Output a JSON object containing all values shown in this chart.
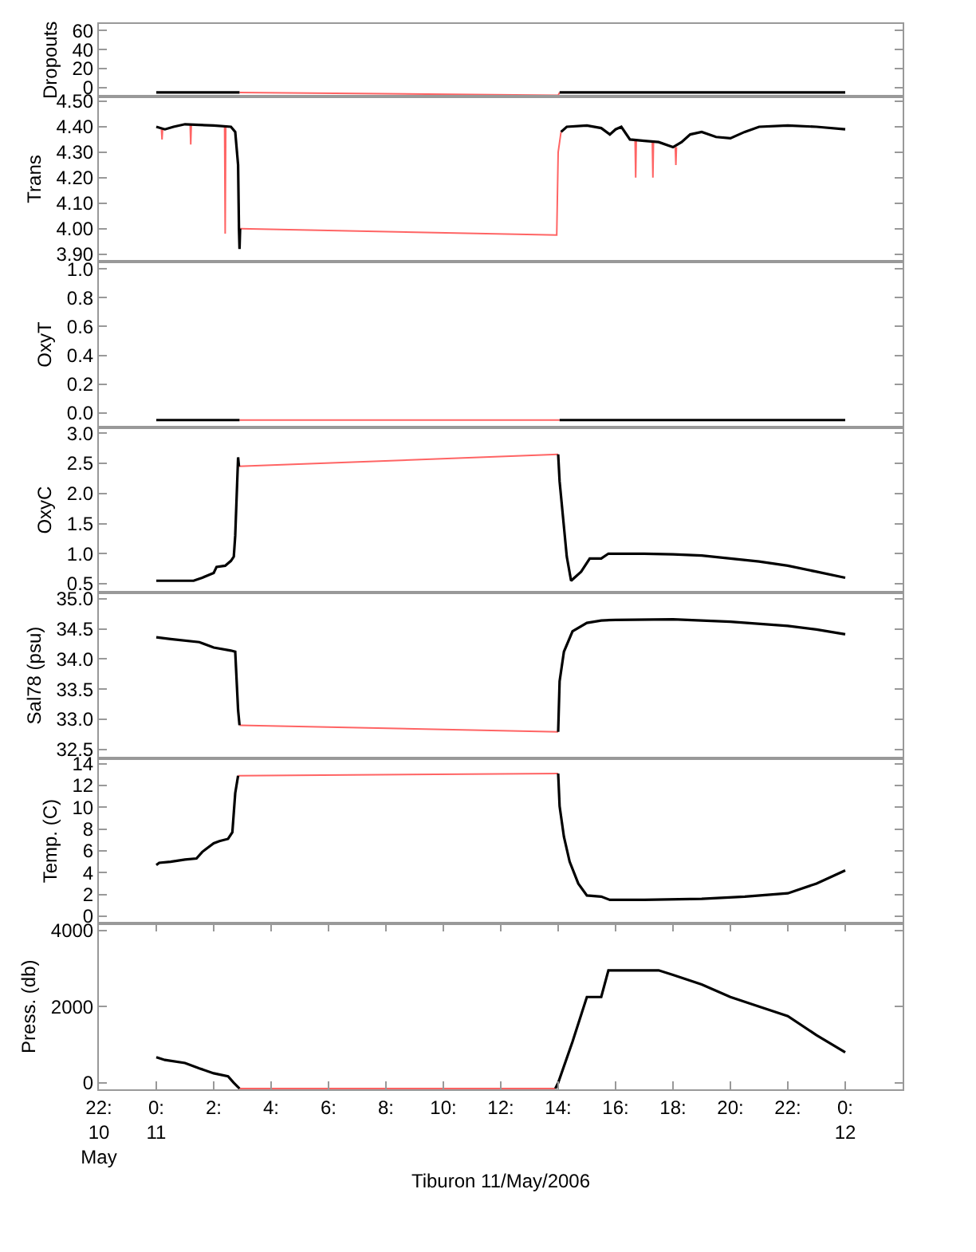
{
  "chart_data": [
    {
      "type": "line",
      "ylabel": "Dropouts",
      "xlim": [
        -2,
        26
      ],
      "ylim": [
        -9,
        67
      ],
      "yticks": [
        0,
        20,
        40,
        60
      ],
      "tick_labels": "y",
      "marker": "none",
      "series": [
        {
          "color": "#ff6464",
          "x": [
            2.9,
            14.0,
            14.05
          ],
          "values": [
            -5,
            -8,
            -5
          ]
        },
        {
          "color": "#000000",
          "x": [
            0,
            2.9,
            null,
            14.05,
            24
          ],
          "values": [
            -5,
            -5,
            null,
            -5,
            -5
          ]
        }
      ]
    },
    {
      "type": "line",
      "ylabel": "Trans",
      "xlim": [
        -2,
        26
      ],
      "ylim": [
        3.87,
        4.52
      ],
      "yticks": [
        {
          "value": 3.9,
          "label": "3.90"
        },
        {
          "value": 4.0,
          "label": "4.00"
        },
        {
          "value": 4.1,
          "label": "4.10"
        },
        {
          "value": 4.2,
          "label": "4.20"
        },
        {
          "value": 4.3,
          "label": "4.30"
        },
        {
          "value": 4.4,
          "label": "4.40"
        },
        {
          "value": 4.5,
          "label": "4.50"
        }
      ],
      "tick_labels": "y",
      "marker": "none",
      "series": [
        {
          "color": "#ff6464",
          "x": [
            0.18,
            0.2,
            0.22,
            null,
            1.18,
            1.2,
            1.22,
            null,
            2.38,
            2.4,
            2.42,
            null,
            2.92,
            13.95,
            14.0,
            14.1,
            null,
            16.68,
            16.7,
            16.72,
            null,
            17.28,
            17.3,
            17.32,
            null,
            18.08,
            18.1,
            18.12
          ],
          "values": [
            4.39,
            4.35,
            4.39,
            null,
            4.41,
            4.33,
            4.41,
            null,
            4.4,
            3.98,
            4.4,
            null,
            4.0,
            3.975,
            4.3,
            4.38,
            null,
            4.345,
            4.2,
            4.345,
            null,
            4.34,
            4.2,
            4.34,
            null,
            4.32,
            4.25,
            4.32
          ]
        },
        {
          "color": "#000000",
          "x": [
            0,
            0.3,
            0.6,
            1.0,
            2.0,
            2.6,
            2.75,
            2.85,
            2.88,
            2.9,
            2.92,
            null,
            14.1,
            14.3,
            15,
            15.5,
            15.8,
            16,
            16.2,
            16.5,
            17,
            17.5,
            18,
            18.3,
            18.6,
            19,
            19.5,
            20,
            20.5,
            21,
            22,
            23,
            24
          ],
          "values": [
            4.4,
            4.39,
            4.4,
            4.41,
            4.405,
            4.4,
            4.38,
            4.25,
            4.0,
            3.92,
            4.0,
            null,
            4.38,
            4.4,
            4.405,
            4.395,
            4.37,
            4.39,
            4.4,
            4.35,
            4.345,
            4.34,
            4.32,
            4.34,
            4.37,
            4.38,
            4.36,
            4.355,
            4.38,
            4.4,
            4.405,
            4.4,
            4.39
          ]
        }
      ]
    },
    {
      "type": "line",
      "ylabel": "OxyT",
      "xlim": [
        -2,
        26
      ],
      "ylim": [
        -0.1,
        1.05
      ],
      "yticks": [
        {
          "value": 0,
          "label": "0.0"
        },
        {
          "value": 0.2,
          "label": "0.2"
        },
        {
          "value": 0.4,
          "label": "0.4"
        },
        {
          "value": 0.6,
          "label": "0.6"
        },
        {
          "value": 0.8,
          "label": "0.8"
        },
        {
          "value": 1.0,
          "label": "1.0"
        }
      ],
      "tick_labels": "y",
      "marker": "none",
      "series": [
        {
          "color": "#ff6464",
          "x": [
            2.9,
            14.05
          ],
          "values": [
            -0.05,
            -0.05
          ]
        },
        {
          "color": "#000000",
          "x": [
            0,
            2.9,
            null,
            14.05,
            24
          ],
          "values": [
            -0.05,
            -0.05,
            null,
            -0.05,
            -0.05
          ]
        }
      ]
    },
    {
      "type": "line",
      "ylabel": "OxyC",
      "xlim": [
        -2,
        26
      ],
      "ylim": [
        0.35,
        3.1
      ],
      "yticks": [
        {
          "value": 0.5,
          "label": "0.5"
        },
        {
          "value": 1.0,
          "label": "1.0"
        },
        {
          "value": 1.5,
          "label": "1.5"
        },
        {
          "value": 2.0,
          "label": "2.0"
        },
        {
          "value": 2.5,
          "label": "2.5"
        },
        {
          "value": 3.0,
          "label": "3.0"
        }
      ],
      "tick_labels": "y",
      "marker": "none",
      "series": [
        {
          "color": "#ff6464",
          "x": [
            2.88,
            14.0
          ],
          "values": [
            2.45,
            2.65
          ]
        },
        {
          "color": "#000000",
          "x": [
            0,
            1.3,
            1.6,
            2.0,
            2.1,
            2.4,
            2.6,
            2.7,
            2.75,
            2.85,
            2.88,
            null,
            14.0,
            14.05,
            14.3,
            14.45,
            14.8,
            15.1,
            15.5,
            15.75,
            17,
            18,
            19,
            20,
            21,
            22,
            23,
            24
          ],
          "values": [
            0.55,
            0.55,
            0.6,
            0.68,
            0.78,
            0.8,
            0.88,
            0.95,
            1.3,
            2.6,
            2.45,
            null,
            2.65,
            2.2,
            0.95,
            0.55,
            0.7,
            0.92,
            0.92,
            1.0,
            1.0,
            0.99,
            0.97,
            0.92,
            0.87,
            0.8,
            0.7,
            0.6
          ]
        }
      ]
    },
    {
      "type": "line",
      "ylabel": "Sal78 (psu)",
      "xlim": [
        -2,
        26
      ],
      "ylim": [
        32.35,
        35.1
      ],
      "yticks": [
        {
          "value": 32.5,
          "label": "32.5"
        },
        {
          "value": 33.0,
          "label": "33.0"
        },
        {
          "value": 33.5,
          "label": "33.5"
        },
        {
          "value": 34.0,
          "label": "34.0"
        },
        {
          "value": 34.5,
          "label": "34.5"
        },
        {
          "value": 35.0,
          "label": "35.0"
        }
      ],
      "tick_labels": "y",
      "marker": "none",
      "series": [
        {
          "color": "#ff6464",
          "x": [
            2.9,
            14.0
          ],
          "values": [
            32.9,
            32.79
          ]
        },
        {
          "color": "#000000",
          "x": [
            0,
            0.5,
            1.5,
            2.0,
            2.6,
            2.75,
            2.85,
            2.9,
            null,
            14.0,
            14.05,
            14.2,
            14.5,
            15,
            15.5,
            16,
            18,
            20,
            22,
            23,
            24
          ],
          "values": [
            34.36,
            34.33,
            34.28,
            34.19,
            34.14,
            34.12,
            33.15,
            32.9,
            null,
            32.79,
            33.63,
            34.12,
            34.46,
            34.6,
            34.64,
            34.65,
            34.66,
            34.62,
            34.55,
            34.49,
            34.41
          ]
        }
      ]
    },
    {
      "type": "line",
      "ylabel": "Temp. (C)",
      "xlim": [
        -2,
        26
      ],
      "ylim": [
        -0.7,
        14.5
      ],
      "yticks": [
        0,
        2,
        4,
        6,
        8,
        10,
        12,
        14
      ],
      "tick_labels": "y",
      "marker": "none",
      "series": [
        {
          "color": "#ff6464",
          "x": [
            2.85,
            14.0
          ],
          "values": [
            12.9,
            13.1
          ]
        },
        {
          "color": "#000000",
          "x": [
            0,
            0.1,
            0.5,
            1.0,
            1.4,
            1.6,
            2.0,
            2.2,
            2.5,
            2.65,
            2.75,
            2.85,
            null,
            14.0,
            14.05,
            14.2,
            14.4,
            14.7,
            15,
            15.5,
            15.8,
            17,
            19,
            20.5,
            22,
            23,
            24
          ],
          "values": [
            4.7,
            4.9,
            5.0,
            5.2,
            5.3,
            5.9,
            6.7,
            6.9,
            7.1,
            7.7,
            11.3,
            12.9,
            null,
            13.1,
            10.1,
            7.3,
            5.0,
            3.0,
            1.9,
            1.8,
            1.5,
            1.5,
            1.6,
            1.8,
            2.1,
            3.0,
            4.2
          ]
        }
      ]
    },
    {
      "type": "line",
      "ylabel": "Press. (db)",
      "xlabel": "Tiburon 11/May/2006",
      "xlim": [
        -2,
        26
      ],
      "ylim": [
        -170,
        4170
      ],
      "yticks": [
        0,
        2000,
        4000
      ],
      "xticks": [
        {
          "value": -2,
          "label": "22:\n10\nMay"
        },
        {
          "value": 0,
          "label": "0:\n11"
        },
        {
          "value": 2,
          "label": "2:"
        },
        {
          "value": 4,
          "label": "4:"
        },
        {
          "value": 6,
          "label": "6:"
        },
        {
          "value": 8,
          "label": "8:"
        },
        {
          "value": 10,
          "label": "10:"
        },
        {
          "value": 12,
          "label": "12:"
        },
        {
          "value": 14,
          "label": "14:"
        },
        {
          "value": 16,
          "label": "16:"
        },
        {
          "value": 18,
          "label": "18:"
        },
        {
          "value": 20,
          "label": "20:"
        },
        {
          "value": 22,
          "label": "22:"
        },
        {
          "value": 24,
          "label": "0:\n12"
        }
      ],
      "marker": "none",
      "series": [
        {
          "color": "#ff6464",
          "x": [
            2.9,
            13.9
          ],
          "values": [
            -150,
            -150
          ]
        },
        {
          "color": "#000000",
          "x": [
            0,
            0.3,
            1.0,
            1.5,
            2.0,
            2.5,
            2.7,
            2.9,
            null,
            13.9,
            14.0,
            14.5,
            15.0,
            15.5,
            15.75,
            17.5,
            18,
            19,
            20,
            21,
            22,
            23,
            24
          ],
          "values": [
            670,
            600,
            520,
            380,
            250,
            170,
            0,
            -150,
            null,
            -150,
            0,
            1080,
            2250,
            2250,
            2950,
            2950,
            2830,
            2580,
            2250,
            2000,
            1750,
            1250,
            800
          ]
        }
      ]
    }
  ]
}
